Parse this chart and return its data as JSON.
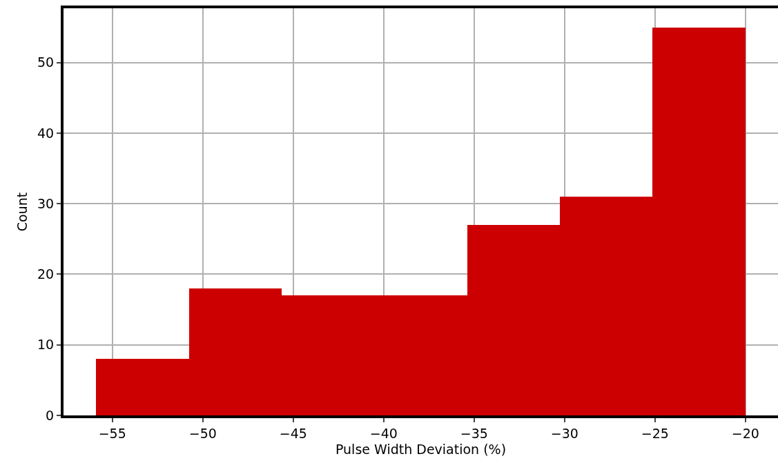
{
  "chart_data": {
    "type": "histogram",
    "xlabel": "Pulse Width Deviation (%)",
    "ylabel": "Count",
    "bins": [
      -55.9,
      -50.77,
      -45.64,
      -40.51,
      -35.39,
      -30.26,
      -25.13,
      -20.0
    ],
    "values": [
      8,
      18,
      17,
      17,
      27,
      31,
      55
    ],
    "color": "#cc0000",
    "xlim": [
      -57.7,
      -18.2
    ],
    "xticks": [
      {
        "value": -55,
        "label": "−55"
      },
      {
        "value": -50,
        "label": "−50"
      },
      {
        "value": -45,
        "label": "−45"
      },
      {
        "value": -40,
        "label": "−40"
      },
      {
        "value": -35,
        "label": "−35"
      },
      {
        "value": -30,
        "label": "−30"
      },
      {
        "value": -25,
        "label": "−25"
      },
      {
        "value": -20,
        "label": "−20"
      }
    ],
    "ylim": [
      0,
      57.7
    ],
    "yticks": [
      0,
      10,
      20,
      30,
      40,
      50
    ],
    "grid": true
  }
}
